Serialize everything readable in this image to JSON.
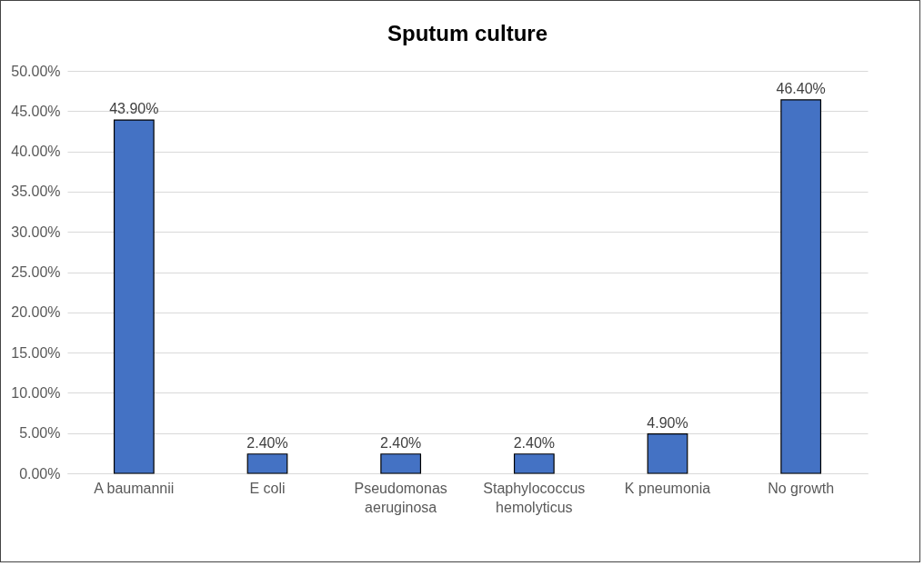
{
  "chart_data": {
    "type": "bar",
    "title": "Sputum culture",
    "categories": [
      "A baumannii",
      "E coli",
      "Pseudomonas aeruginosa",
      "Staphylococcus hemolyticus",
      "K pneumonia",
      "No growth"
    ],
    "values": [
      43.9,
      2.4,
      2.4,
      2.4,
      4.9,
      46.4
    ],
    "value_labels": [
      "43.90%",
      "2.40%",
      "2.40%",
      "2.40%",
      "4.90%",
      "46.40%"
    ],
    "color": "#4472c4",
    "ylim": [
      0,
      50
    ],
    "yticks": [
      {
        "value": 0,
        "label": "0.00%"
      },
      {
        "value": 5,
        "label": "5.00%"
      },
      {
        "value": 10,
        "label": "10.00%"
      },
      {
        "value": 15,
        "label": "15.00%"
      },
      {
        "value": 20,
        "label": "20.00%"
      },
      {
        "value": 25,
        "label": "25.00%"
      },
      {
        "value": 30,
        "label": "30.00%"
      },
      {
        "value": 35,
        "label": "35.00%"
      },
      {
        "value": 40,
        "label": "40.00%"
      },
      {
        "value": 45,
        "label": "45.00%"
      },
      {
        "value": 50,
        "label": "50.00%"
      }
    ],
    "grid": "y"
  }
}
